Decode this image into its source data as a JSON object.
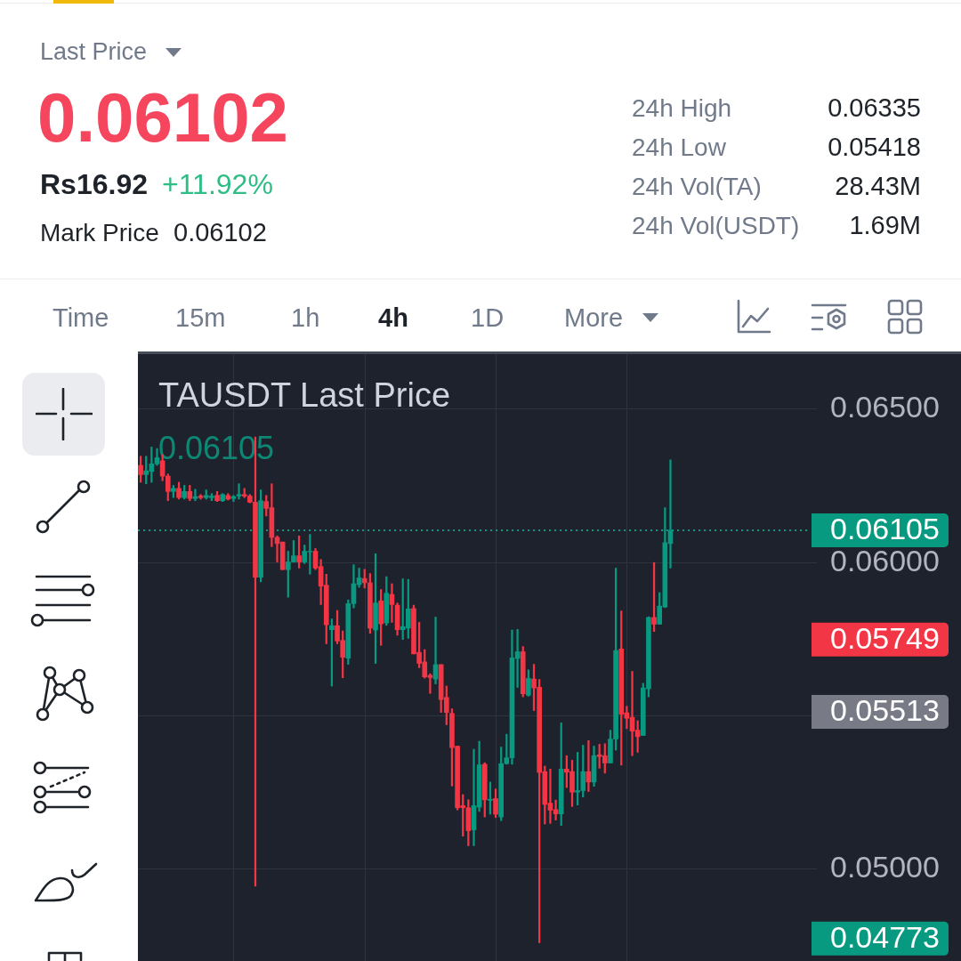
{
  "chart_data": [
    {
      "type": "other",
      "annotations": [
        "Last Price",
        "0.06102",
        "Rs16.92",
        "+11.92%",
        "Mark Price",
        "0.06102",
        "24h High",
        "0.06335",
        "24h Low",
        "0.05418",
        "24h Vol(TA)",
        "28.43M",
        "24h Vol(USDT)",
        "1.69M",
        "Time",
        "15m",
        "1h",
        "4h",
        "1D",
        "More"
      ]
    },
    {
      "type": "candlestick",
      "title": "TAUSDT Last Price",
      "subtitle": "0.06105",
      "categories": [
        null,
        null,
        null,
        null,
        null,
        null,
        null,
        null,
        null,
        null,
        null,
        null,
        null,
        null,
        null,
        null,
        null,
        null,
        null,
        null,
        null,
        null,
        null,
        null,
        null,
        null,
        null,
        null,
        null,
        null,
        null,
        null,
        null,
        null,
        null,
        null,
        null,
        null,
        null,
        null,
        null,
        null,
        null,
        null,
        null,
        null,
        null,
        null,
        null,
        null,
        null,
        null,
        null,
        null,
        null,
        null,
        null,
        null,
        null,
        null,
        null,
        null,
        null,
        null,
        null,
        null,
        null,
        null,
        null,
        null,
        null,
        null,
        null,
        null,
        null,
        null,
        null,
        null,
        null,
        null,
        null,
        null,
        null,
        null,
        null,
        null,
        null,
        null,
        null,
        null,
        null,
        null,
        null,
        null,
        null,
        null,
        null,
        null,
        null,
        null,
        null,
        null,
        null,
        null,
        null,
        null,
        null,
        null,
        null,
        null,
        null,
        null,
        null,
        null,
        null,
        null,
        null,
        null,
        null,
        null,
        null,
        null,
        null
      ],
      "ohlc": [
        [
          0.06317,
          0.06347,
          0.06262,
          0.06287
        ],
        [
          0.06287,
          0.06347,
          0.06257,
          0.06299
        ],
        [
          0.06297,
          0.06377,
          0.06262,
          0.06322
        ],
        [
          0.06322,
          0.06372,
          0.06317,
          0.06342
        ],
        [
          0.06332,
          0.06352,
          0.06267,
          0.06282
        ],
        [
          0.06282,
          0.06289,
          0.06202,
          0.06232
        ],
        [
          0.06232,
          0.06252,
          0.06212,
          0.06242
        ],
        [
          0.06242,
          0.06262,
          0.06207,
          0.06212
        ],
        [
          0.06212,
          0.06252,
          0.06207,
          0.06232
        ],
        [
          0.06232,
          0.06252,
          0.06202,
          0.06209
        ],
        [
          0.06209,
          0.06239,
          0.06202,
          0.06215
        ],
        [
          0.06217,
          0.06222,
          0.06207,
          0.06212
        ],
        [
          0.06212,
          0.06237,
          0.06207,
          0.06219
        ],
        [
          0.06212,
          0.06225,
          0.06202,
          0.06217
        ],
        [
          0.06219,
          0.06232,
          0.06199,
          0.06202
        ],
        [
          0.06202,
          0.06225,
          0.06199,
          0.06222
        ],
        [
          0.06219,
          0.06225,
          0.06204,
          0.06207
        ],
        [
          0.06209,
          0.06219,
          0.06199,
          0.06215
        ],
        [
          0.06217,
          0.06257,
          0.06207,
          0.06222
        ],
        [
          0.06222,
          0.06242,
          0.06212,
          0.06217
        ],
        [
          0.06217,
          0.06222,
          0.06195,
          0.06197
        ],
        [
          0.06197,
          0.0641,
          0.04944,
          0.05952
        ],
        [
          0.05952,
          0.06237,
          0.05937,
          0.06202
        ],
        [
          0.06199,
          0.06219,
          0.06152,
          0.06177
        ],
        [
          0.06179,
          0.06257,
          0.06052,
          0.06082
        ],
        [
          0.06082,
          0.06087,
          0.06002,
          0.06062
        ],
        [
          0.06067,
          0.06067,
          0.05977,
          0.05977
        ],
        [
          0.05977,
          0.06037,
          0.05887,
          0.06002
        ],
        [
          0.06002,
          0.06072,
          0.06002,
          0.06022
        ],
        [
          0.06022,
          0.06087,
          0.05982,
          0.06002
        ],
        [
          0.06002,
          0.06057,
          0.05997,
          0.06037
        ],
        [
          0.06035,
          0.06092,
          0.05962,
          0.06037
        ],
        [
          0.06037,
          0.06046,
          0.05977,
          0.05982
        ],
        [
          0.05987,
          0.0601,
          0.05863,
          0.05923
        ],
        [
          0.05926,
          0.05962,
          0.05735,
          0.05797
        ],
        [
          0.05781,
          0.05816,
          0.05597,
          0.05794
        ],
        [
          0.05794,
          0.05844,
          0.05735,
          0.05744
        ],
        [
          0.05746,
          0.05777,
          0.05624,
          0.05691
        ],
        [
          0.05688,
          0.05878,
          0.05668,
          0.05866
        ],
        [
          0.05866,
          0.05993,
          0.05852,
          0.05931
        ],
        [
          0.05928,
          0.05982,
          0.05919,
          0.0595
        ],
        [
          0.05948,
          0.05978,
          0.05917,
          0.05934
        ],
        [
          0.05934,
          0.05964,
          0.05769,
          0.05786
        ],
        [
          0.0578,
          0.06029,
          0.05671,
          0.05868
        ],
        [
          0.05875,
          0.05912,
          0.0573,
          0.058
        ],
        [
          0.05803,
          0.05954,
          0.05795,
          0.059
        ],
        [
          0.05896,
          0.05931,
          0.05805,
          0.05863
        ],
        [
          0.05861,
          0.05868,
          0.05763,
          0.05781
        ],
        [
          0.05781,
          0.05947,
          0.05749,
          0.05791
        ],
        [
          0.05786,
          0.05945,
          0.05753,
          0.05849
        ],
        [
          0.0585,
          0.05861,
          0.05702,
          0.05702
        ],
        [
          0.05707,
          0.05805,
          0.05657,
          0.05671
        ],
        [
          0.05676,
          0.05716,
          0.05623,
          0.05627
        ],
        [
          0.05632,
          0.05637,
          0.05573,
          0.05625
        ],
        [
          0.0562,
          0.05822,
          0.05604,
          0.05667
        ],
        [
          0.05667,
          0.05667,
          0.05511,
          0.05553
        ],
        [
          0.0556,
          0.05597,
          0.05471,
          0.05511
        ],
        [
          0.05508,
          0.05523,
          0.05271,
          0.05396
        ],
        [
          0.05401,
          0.05401,
          0.05193,
          0.052
        ],
        [
          0.05207,
          0.05243,
          0.05107,
          0.052
        ],
        [
          0.052,
          0.05226,
          0.05076,
          0.05125
        ],
        [
          0.05128,
          0.05391,
          0.05076,
          0.05207
        ],
        [
          0.05202,
          0.05417,
          0.05188,
          0.0534
        ],
        [
          0.05342,
          0.05347,
          0.0517,
          0.05226
        ],
        [
          0.05224,
          0.05284,
          0.05179,
          0.05228
        ],
        [
          0.0523,
          0.05261,
          0.05168,
          0.05179
        ],
        [
          0.0517,
          0.05398,
          0.05158,
          0.05344
        ],
        [
          0.05344,
          0.0544,
          0.05342,
          0.05363
        ],
        [
          0.05363,
          0.0578,
          0.05342,
          0.05689
        ],
        [
          0.05687,
          0.05782,
          0.05593,
          0.05709
        ],
        [
          0.05709,
          0.05726,
          0.05562,
          0.05572
        ],
        [
          0.05567,
          0.0565,
          0.05564,
          0.05622
        ],
        [
          0.0562,
          0.05668,
          0.05517,
          0.05591
        ],
        [
          0.05593,
          0.05619,
          0.0476,
          0.05315
        ],
        [
          0.05318,
          0.05336,
          0.05147,
          0.05211
        ],
        [
          0.05215,
          0.05326,
          0.05149,
          0.05192
        ],
        [
          0.05194,
          0.05225,
          0.0516,
          0.0518
        ],
        [
          0.0518,
          0.05477,
          0.05142,
          0.05326
        ],
        [
          0.05326,
          0.0537,
          0.05266,
          0.05316
        ],
        [
          0.05318,
          0.05355,
          0.05204,
          0.05251
        ],
        [
          0.05251,
          0.05381,
          0.05209,
          0.05256
        ],
        [
          0.05256,
          0.05404,
          0.05235,
          0.05318
        ],
        [
          0.05318,
          0.05419,
          0.05253,
          0.05284
        ],
        [
          0.05284,
          0.05401,
          0.0527,
          0.0537
        ],
        [
          0.05373,
          0.05407,
          0.05329,
          0.05367
        ],
        [
          0.0537,
          0.05409,
          0.05313,
          0.05346
        ],
        [
          0.05346,
          0.05453,
          0.05346,
          0.05424
        ],
        [
          0.05424,
          0.05982,
          0.05388,
          0.05713
        ],
        [
          0.05718,
          0.05842,
          0.05339,
          0.05505
        ],
        [
          0.0551,
          0.05531,
          0.05458,
          0.05492
        ],
        [
          0.05495,
          0.05645,
          0.0537,
          0.0545
        ],
        [
          0.05453,
          0.05484,
          0.05381,
          0.05432
        ],
        [
          0.05436,
          0.05606,
          0.05436,
          0.05591
        ],
        [
          0.05588,
          0.05823,
          0.05562,
          0.05821
        ],
        [
          0.05821,
          0.06,
          0.05775,
          0.05799
        ],
        [
          0.05799,
          0.05902,
          0.05799,
          0.05858
        ],
        [
          0.05855,
          0.06179,
          0.05853,
          0.06065
        ],
        [
          0.06062,
          0.06335,
          0.05982,
          0.06105
        ],
        null,
        null,
        null,
        null,
        null,
        null,
        null,
        null,
        null,
        null,
        null,
        null,
        null,
        null,
        null,
        null,
        null,
        null,
        null,
        null,
        null,
        null,
        null,
        null,
        null
      ],
      "colors": [
        "#f23645",
        "#089981",
        "#089981",
        "#089981",
        "#f23645",
        "#f23645",
        "#089981",
        "#f23645",
        "#089981",
        "#f23645",
        "#089981",
        "#f23645",
        "#089981",
        "#089981",
        "#f23645",
        "#089981",
        "#f23645",
        "#089981",
        "#089981",
        "#f23645",
        "#f23645",
        "#f23645",
        "#089981",
        "#f23645",
        "#f23645",
        "#f23645",
        "#f23645",
        "#089981",
        "#089981",
        "#f23645",
        "#089981",
        "#089981",
        "#f23645",
        "#f23645",
        "#f23645",
        "#089981",
        "#f23645",
        "#f23645",
        "#089981",
        "#089981",
        "#089981",
        "#f23645",
        "#f23645",
        "#089981",
        "#f23645",
        "#089981",
        "#f23645",
        "#f23645",
        "#089981",
        "#089981",
        "#f23645",
        "#f23645",
        "#f23645",
        "#f23645",
        "#089981",
        "#f23645",
        "#f23645",
        "#f23645",
        "#f23645",
        "#f23645",
        "#f23645",
        "#089981",
        "#089981",
        "#f23645",
        "#089981",
        "#f23645",
        "#089981",
        "#089981",
        "#089981",
        "#089981",
        "#f23645",
        "#089981",
        "#f23645",
        "#f23645",
        "#f23645",
        "#f23645",
        "#f23645",
        "#089981",
        "#f23645",
        "#f23645",
        "#089981",
        "#089981",
        "#f23645",
        "#089981",
        "#f23645",
        "#f23645",
        "#089981",
        "#089981",
        "#f23645",
        "#f23645",
        "#f23645",
        "#f23645",
        "#089981",
        "#089981",
        "#f23645",
        "#089981",
        "#089981",
        "#089981",
        null,
        null,
        null,
        null,
        null,
        null,
        null,
        null,
        null,
        null,
        null,
        null,
        null,
        null,
        null,
        null,
        null,
        null,
        null,
        null,
        null,
        null,
        null,
        null,
        null
      ],
      "ylim": [
        0.047,
        0.0668
      ],
      "yticks": [
        {
          "value": 0.05,
          "label": "0.05000"
        },
        {
          "value": 0.055,
          "label": null
        },
        {
          "value": 0.06,
          "label": "0.06000"
        },
        {
          "value": 0.065,
          "label": "0.06500"
        }
      ],
      "tick_labels": "y",
      "grid": true,
      "ref_lines": [
        {
          "axis": "y",
          "value": 0.06105,
          "label": "0.06105",
          "color": "#089981",
          "line_style": "dotted"
        }
      ],
      "annotations": [
        "0.05749",
        "0.05513",
        "0.04773"
      ]
    }
  ]
}
